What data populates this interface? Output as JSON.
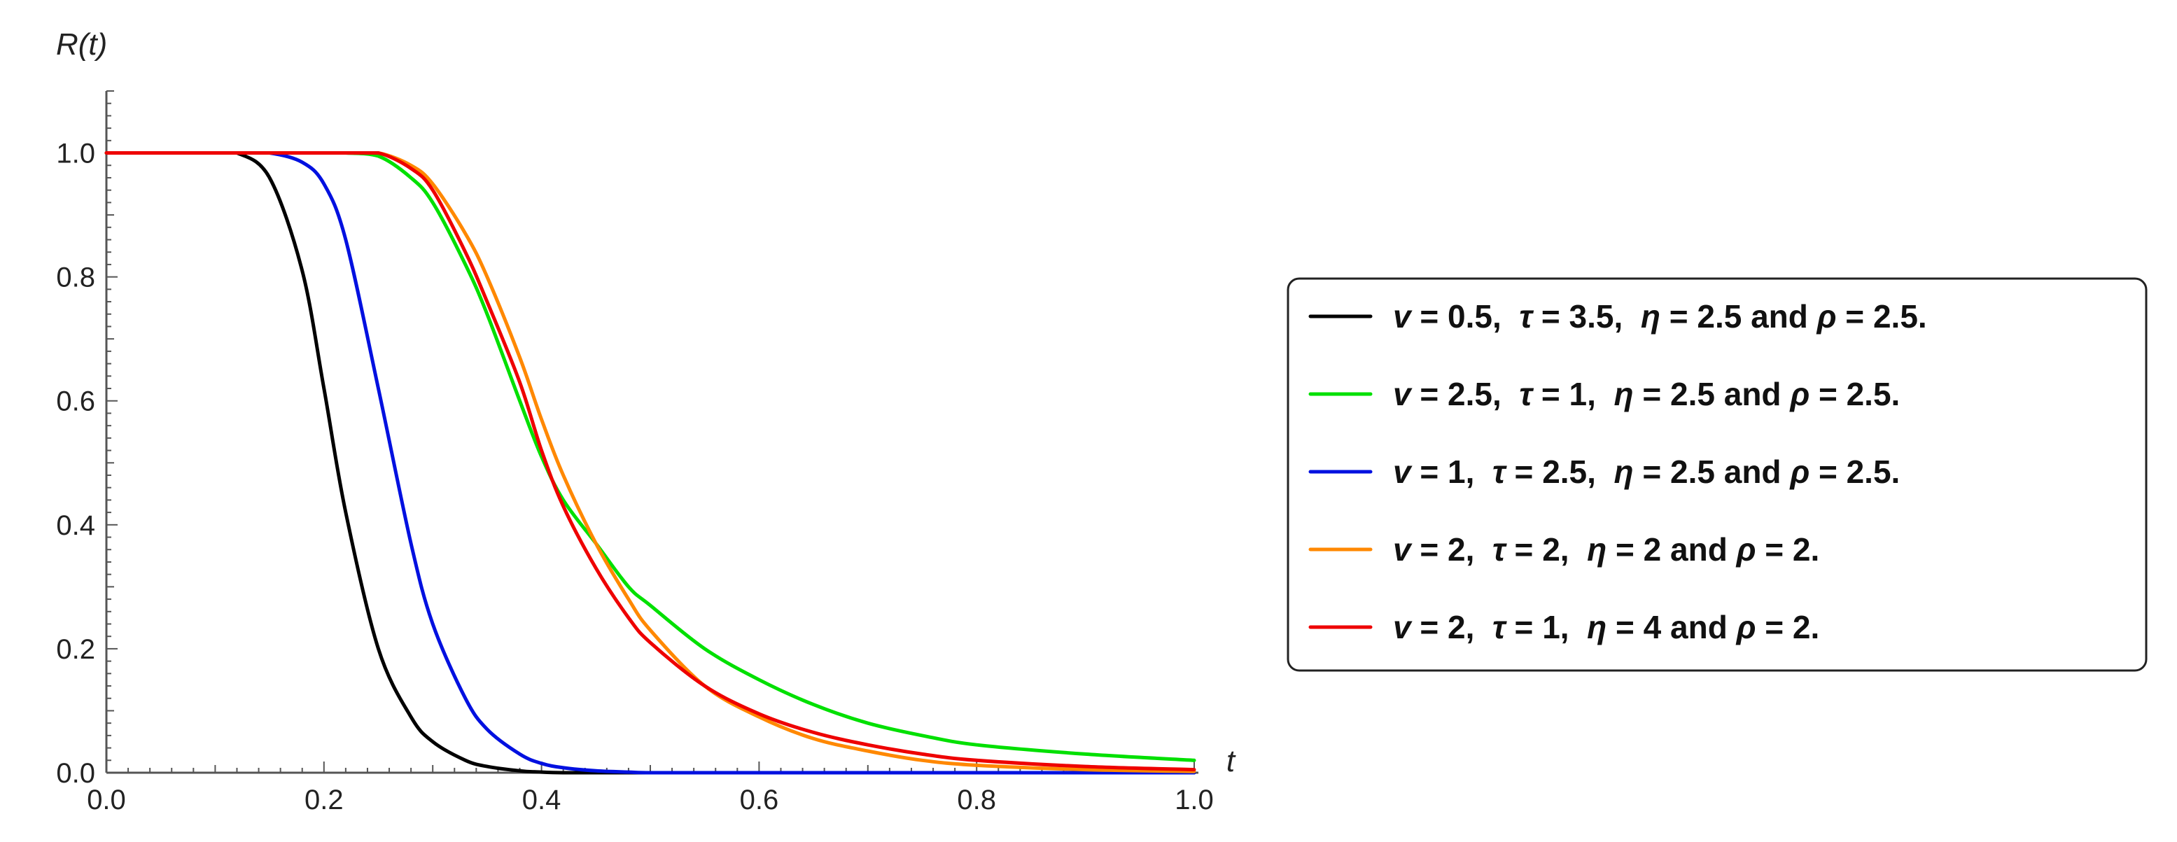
{
  "chart_data": {
    "type": "line",
    "title": "",
    "xlabel": "t",
    "ylabel": "R(t)",
    "xlim": [
      0.0,
      1.0
    ],
    "ylim": [
      0.0,
      1.1
    ],
    "x_ticks": [
      "0.0",
      "0.2",
      "0.4",
      "0.6",
      "0.8",
      "1.0"
    ],
    "y_ticks": [
      "0.0",
      "0.2",
      "0.4",
      "0.6",
      "0.8",
      "1.0"
    ],
    "grid": false,
    "legend_position": "right",
    "x": [
      0.0,
      0.05,
      0.1,
      0.12,
      0.15,
      0.18,
      0.2,
      0.22,
      0.25,
      0.28,
      0.3,
      0.33,
      0.35,
      0.38,
      0.4,
      0.42,
      0.45,
      0.48,
      0.5,
      0.55,
      0.6,
      0.65,
      0.7,
      0.75,
      0.8,
      0.9,
      1.0
    ],
    "series": [
      {
        "name": "v = 0.5,  τ = 3.5,  η = 2.5 and ρ = 2.5.",
        "color": "#000000",
        "values": [
          1.0,
          1.0,
          1.0,
          1.0,
          0.96,
          0.81,
          0.62,
          0.42,
          0.2,
          0.09,
          0.05,
          0.02,
          0.01,
          0.003,
          0.001,
          0.0,
          0.0,
          0.0,
          0.0,
          0.0,
          0.0,
          0.0,
          0.0,
          0.0,
          0.0,
          0.0,
          0.0
        ]
      },
      {
        "name": "v = 2.5,  τ = 1,  η = 2.5 and ρ = 2.5.",
        "color": "#00e000",
        "values": [
          1.0,
          1.0,
          1.0,
          1.0,
          1.0,
          1.0,
          1.0,
          1.0,
          0.995,
          0.96,
          0.92,
          0.82,
          0.74,
          0.6,
          0.51,
          0.44,
          0.37,
          0.3,
          0.27,
          0.2,
          0.15,
          0.11,
          0.08,
          0.06,
          0.045,
          0.03,
          0.02
        ]
      },
      {
        "name": "v = 1,  τ = 2.5,  η = 2.5 and ρ = 2.5.",
        "color": "#0010e0",
        "values": [
          1.0,
          1.0,
          1.0,
          1.0,
          1.0,
          0.985,
          0.95,
          0.86,
          0.62,
          0.37,
          0.24,
          0.12,
          0.07,
          0.03,
          0.015,
          0.008,
          0.003,
          0.001,
          0.0,
          0.0,
          0.0,
          0.0,
          0.0,
          0.0,
          0.0,
          0.0,
          0.0
        ]
      },
      {
        "name": "v = 2,  τ = 2,  η = 2 and ρ = 2.",
        "color": "#ff8800",
        "values": [
          1.0,
          1.0,
          1.0,
          1.0,
          1.0,
          1.0,
          1.0,
          1.0,
          1.0,
          0.98,
          0.95,
          0.87,
          0.8,
          0.67,
          0.57,
          0.48,
          0.37,
          0.28,
          0.23,
          0.14,
          0.09,
          0.055,
          0.035,
          0.02,
          0.012,
          0.005,
          0.002
        ]
      },
      {
        "name": "v = 2,  τ = 1,  η = 4 and ρ = 2.",
        "color": "#ee0000",
        "values": [
          1.0,
          1.0,
          1.0,
          1.0,
          1.0,
          1.0,
          1.0,
          1.0,
          1.0,
          0.975,
          0.94,
          0.84,
          0.76,
          0.63,
          0.52,
          0.43,
          0.33,
          0.25,
          0.21,
          0.14,
          0.095,
          0.065,
          0.045,
          0.03,
          0.02,
          0.01,
          0.005
        ]
      }
    ]
  }
}
